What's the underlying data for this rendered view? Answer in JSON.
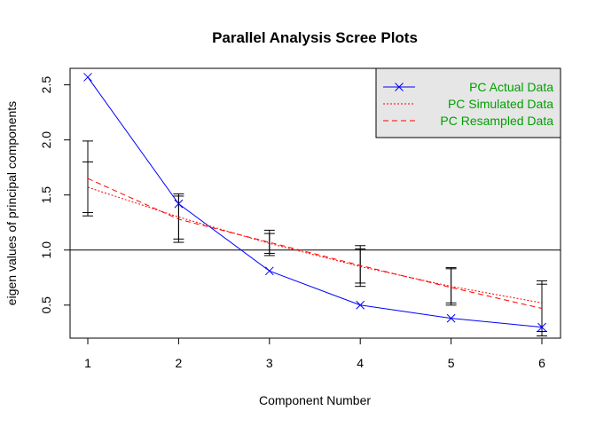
{
  "chart_data": {
    "type": "line",
    "title": "Parallel Analysis Scree Plots",
    "xlabel": "Component Number",
    "ylabel": "eigen values of principal components",
    "x": [
      1,
      2,
      3,
      4,
      5,
      6
    ],
    "xlim": [
      1,
      6
    ],
    "ylim": [
      0.2,
      2.65
    ],
    "x_ticks": [
      "1",
      "2",
      "3",
      "4",
      "5",
      "6"
    ],
    "y_ticks": [
      "0.5",
      "1.0",
      "1.5",
      "2.0",
      "2.5"
    ],
    "reference_line": 1.0,
    "legend_placement": "top-right",
    "series": [
      {
        "name": "PC  Actual Data",
        "values": [
          2.57,
          1.42,
          0.81,
          0.5,
          0.38,
          0.3
        ],
        "color": "#0000ff",
        "style": "solid",
        "marker": "x"
      },
      {
        "name": "PC  Simulated Data",
        "values": [
          1.57,
          1.3,
          1.06,
          0.85,
          0.67,
          0.52
        ],
        "color": "#ff0000",
        "style": "dotted"
      },
      {
        "name": "PC  Resampled Data",
        "values": [
          1.65,
          1.28,
          1.07,
          0.86,
          0.66,
          0.47
        ],
        "color": "#ff0000",
        "style": "dashed"
      }
    ],
    "error_bars": [
      {
        "x": 1,
        "low": 1.31,
        "high": 1.99
      },
      {
        "x": 1,
        "low": 1.34,
        "high": 1.8
      },
      {
        "x": 2,
        "low": 1.07,
        "high": 1.51
      },
      {
        "x": 2,
        "low": 1.1,
        "high": 1.49
      },
      {
        "x": 3,
        "low": 0.95,
        "high": 1.18
      },
      {
        "x": 3,
        "low": 0.97,
        "high": 1.15
      },
      {
        "x": 4,
        "low": 0.67,
        "high": 1.04
      },
      {
        "x": 4,
        "low": 0.7,
        "high": 1.01
      },
      {
        "x": 5,
        "low": 0.5,
        "high": 0.84
      },
      {
        "x": 5,
        "low": 0.52,
        "high": 0.83
      },
      {
        "x": 6,
        "low": 0.22,
        "high": 0.72
      },
      {
        "x": 6,
        "low": 0.26,
        "high": 0.69
      }
    ],
    "legend_bg": "#e6e6e6",
    "legend_text_color": "#00a000"
  }
}
